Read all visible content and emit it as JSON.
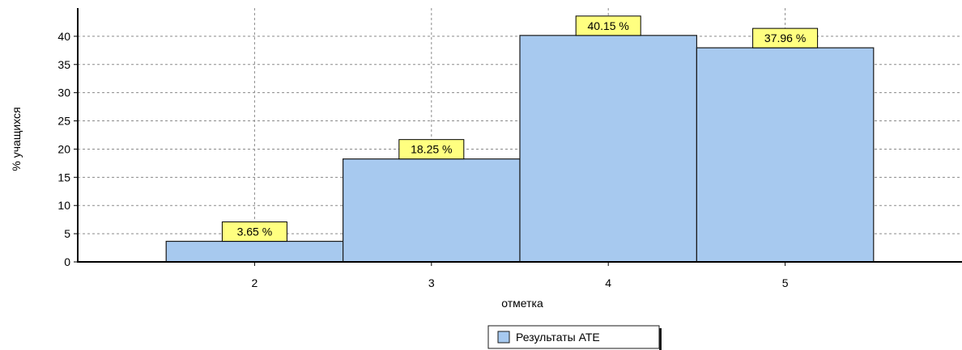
{
  "chart_data": {
    "type": "bar",
    "categories": [
      "2",
      "3",
      "4",
      "5"
    ],
    "series": [
      {
        "name": "Результаты АТЕ",
        "values": [
          3.65,
          18.25,
          40.15,
          37.96
        ]
      }
    ],
    "data_labels": [
      "3.65 %",
      "18.25 %",
      "40.15 %",
      "37.96 %"
    ],
    "xlabel": "отметка",
    "ylabel": "% учащихся",
    "ylim": [
      0,
      45
    ],
    "yticks": [
      0,
      5,
      10,
      15,
      20,
      25,
      30,
      35,
      40
    ],
    "x_range": [
      1,
      6
    ],
    "grid": true,
    "legend_position": "bottom-center",
    "colors": {
      "bar_fill": "#a7c9ef",
      "bar_stroke": "#1a1a1a",
      "label_fill": "#ffff80",
      "grid": "#8a8a8a"
    }
  }
}
